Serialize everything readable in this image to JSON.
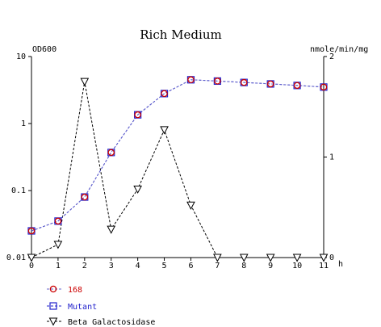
{
  "chart_data": {
    "type": "line",
    "title": "Rich Medium",
    "left_axis": {
      "label": "OD600",
      "scale": "log",
      "ylim": [
        0.01,
        10
      ],
      "ticks": [
        0.01,
        0.1,
        1,
        10
      ],
      "tick_labels": [
        "0.01",
        "0.1",
        "1",
        "10"
      ]
    },
    "right_axis": {
      "label": "nmole/min/mg",
      "scale": "linear",
      "ylim": [
        0,
        2
      ],
      "ticks": [
        0,
        1,
        2
      ],
      "tick_labels": [
        "0",
        "1",
        "2"
      ]
    },
    "x_axis": {
      "unit_label": "h",
      "xlim": [
        0,
        11
      ],
      "ticks": [
        0,
        1,
        2,
        3,
        4,
        5,
        6,
        7,
        8,
        9,
        10,
        11
      ],
      "tick_labels": [
        "0",
        "1",
        "2",
        "3",
        "4",
        "5",
        "6",
        "7",
        "8",
        "9",
        "10",
        "11"
      ]
    },
    "x": [
      0,
      1,
      2,
      3,
      4,
      5,
      6,
      7,
      8,
      9,
      10,
      11
    ],
    "grid": false,
    "legend_placement": "bottom-left",
    "series": [
      {
        "name": "168",
        "axis": "left",
        "marker": "circle",
        "color": "#cc0000",
        "line_color": "#6666cc",
        "values": [
          0.025,
          0.035,
          0.08,
          0.37,
          1.35,
          2.8,
          4.5,
          4.3,
          4.1,
          3.9,
          3.7,
          3.5
        ]
      },
      {
        "name": "Mutant",
        "axis": "left",
        "marker": "square",
        "color": "#2222cc",
        "line_color": "#2222cc",
        "values": [
          0.025,
          0.035,
          0.08,
          0.37,
          1.35,
          2.8,
          4.5,
          4.3,
          4.1,
          3.9,
          3.7,
          3.5
        ]
      },
      {
        "name": "Beta Galactosidase",
        "axis": "right",
        "marker": "triangle-down",
        "color": "#000000",
        "line_color": "#000000",
        "values": [
          0.0,
          0.13,
          1.75,
          0.28,
          0.68,
          1.27,
          0.52,
          0.0,
          0.0,
          0.0,
          0.0,
          0.0
        ]
      }
    ]
  }
}
